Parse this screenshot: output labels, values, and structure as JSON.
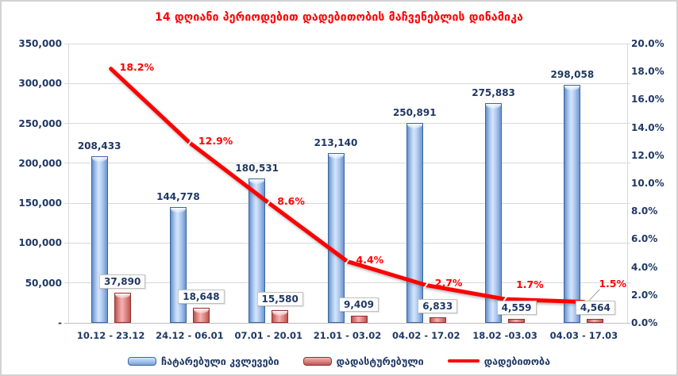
{
  "chart_data": {
    "type": "bar",
    "subtype": "clustered bars with secondary-axis line",
    "title": "14 დღიანი პერიოდებით დადებითობის მაჩვენებლის დინამიკა",
    "title_color": "#FF0000",
    "categories": [
      "10.12 - 23.12",
      "24.12 - 06.01",
      "07.01 - 20.01",
      "21.01 - 03.02",
      "04.02 - 17.02",
      "18.02 -03.03",
      "04.03 - 17.03"
    ],
    "series": [
      {
        "name": "ჩატარებული კვლევები",
        "type": "bar",
        "axis": "left",
        "color": "#A9C7EF",
        "border_color": "#3A66A0",
        "values": [
          208433,
          144778,
          180531,
          213140,
          250891,
          275883,
          298058
        ],
        "labels": [
          "208,433",
          "144,778",
          "180,531",
          "213,140",
          "250,891",
          "275,883",
          "298,058"
        ]
      },
      {
        "name": "დადასტურებული",
        "type": "bar",
        "axis": "left",
        "color": "#E08B88",
        "border_color": "#8E3331",
        "values": [
          37890,
          18648,
          15580,
          9409,
          6833,
          4559,
          4564
        ],
        "labels": [
          "37,890",
          "18,648",
          "15,580",
          "9,409",
          "6,833",
          "4,559",
          "4,564"
        ],
        "label_style": "white box with gray border"
      },
      {
        "name": "დადებითობა",
        "type": "line",
        "axis": "right",
        "color": "#FF0000",
        "values": [
          18.2,
          12.9,
          8.6,
          4.4,
          2.7,
          1.7,
          1.5
        ],
        "labels": [
          "18.2%",
          "12.9%",
          "8.6%",
          "4.4%",
          "2.7%",
          "1.7%",
          "1.5%"
        ]
      }
    ],
    "left_axis": {
      "min": 0,
      "max": 350000,
      "step": 50000,
      "tick_labels": [
        "350,000",
        "300,000",
        "250,000",
        "200,000",
        "150,000",
        "100,000",
        "50,000",
        "-"
      ]
    },
    "right_axis": {
      "min": 0,
      "max": 20,
      "step": 2,
      "tick_labels": [
        "20.0%",
        "18.0%",
        "16.0%",
        "14.0%",
        "12.0%",
        "10.0%",
        "8.0%",
        "6.0%",
        "4.0%",
        "2.0%",
        "0.0%"
      ]
    },
    "grid": "horizontal gridlines at every 50,000; light gray",
    "legend_position": "bottom center",
    "colors": {
      "axis_text": "#1F3864",
      "gridline": "#D9D9D9",
      "line_label": "#FF0000",
      "background": "#FFFFFF"
    }
  }
}
